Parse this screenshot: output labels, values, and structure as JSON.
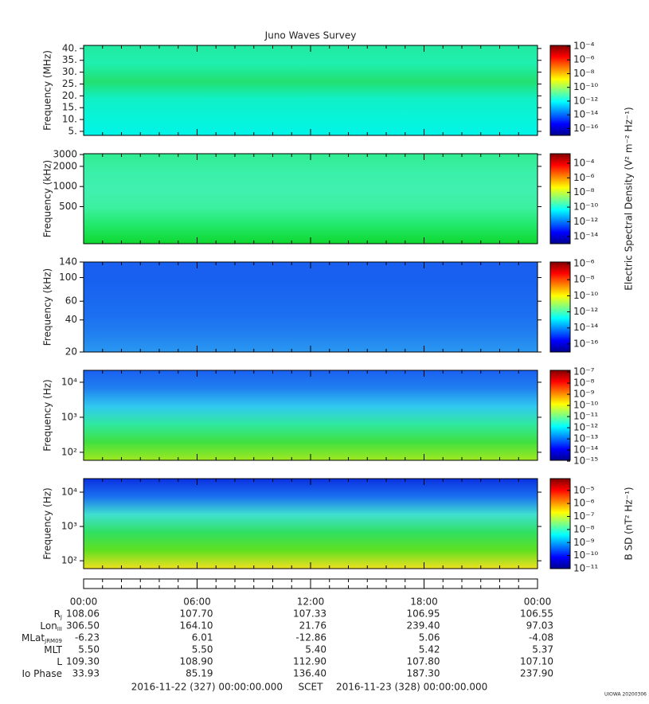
{
  "title": "Juno Waves Survey",
  "xlim": [
    0,
    24
  ],
  "xticks": [
    {
      "value": 0,
      "label": "00:00"
    },
    {
      "value": 6,
      "label": "06:00"
    },
    {
      "value": 12,
      "label": "12:00"
    },
    {
      "value": 18,
      "label": "18:00"
    },
    {
      "value": 24,
      "label": "00:00"
    }
  ],
  "panels": [
    {
      "ylabel": "Frequency (MHz)",
      "yscale": "linear",
      "ylim": [
        3.3,
        41.3
      ],
      "yticks": [
        {
          "value": 40,
          "label": "40."
        },
        {
          "value": 35,
          "label": "35."
        },
        {
          "value": 30,
          "label": "30."
        },
        {
          "value": 25,
          "label": "25."
        },
        {
          "value": 20,
          "label": "20."
        },
        {
          "value": 15,
          "label": "15."
        },
        {
          "value": 10,
          "label": "10."
        },
        {
          "value": 5,
          "label": "5."
        }
      ],
      "clim": [
        1e-17,
        0.00013
      ],
      "cticks": [
        {
          "value": 0.0001,
          "label": "10⁻⁴"
        },
        {
          "value": 1e-06,
          "label": "10⁻⁶"
        },
        {
          "value": 1e-08,
          "label": "10⁻⁸"
        },
        {
          "value": 1e-10,
          "label": "10⁻¹⁰"
        },
        {
          "value": 1e-12,
          "label": "10⁻¹²"
        },
        {
          "value": 1e-14,
          "label": "10⁻¹⁴"
        },
        {
          "value": 1e-16,
          "label": "10⁻¹⁶"
        }
      ],
      "colors": [
        "#22e9a0",
        "#1ff0b0",
        "#22e070",
        "#10f0c8",
        "#08f4d8",
        "#00f4e8"
      ]
    },
    {
      "ylabel": "Frequency (kHz)",
      "yscale": "log",
      "ylim": [
        140,
        3090
      ],
      "yticks": [
        3000,
        2000,
        1000,
        500
      ],
      "clim": [
        1e-15,
        0.002
      ],
      "cticks": [
        {
          "value": 0.0001,
          "label": "10⁻⁴"
        },
        {
          "value": 1e-06,
          "label": "10⁻⁶"
        },
        {
          "value": 1e-08,
          "label": "10⁻⁸"
        },
        {
          "value": 1e-10,
          "label": "10⁻¹⁰"
        },
        {
          "value": 1e-12,
          "label": "10⁻¹²"
        },
        {
          "value": 1e-14,
          "label": "10⁻¹⁴"
        }
      ],
      "colorbar_label": "Electric Spectral Density (V² m⁻² Hz⁻¹)",
      "colors": [
        "#30ec90",
        "#3af0a8",
        "#40f0b0",
        "#3cf0a0",
        "#20e868",
        "#10d830"
      ]
    },
    {
      "ylabel": "Frequency (kHz)",
      "yscale": "log",
      "ylim": [
        20,
        140
      ],
      "yticks": [
        140,
        100,
        60,
        40,
        20
      ],
      "clim": [
        1e-17,
        1.6e-06
      ],
      "cticks": [
        {
          "value": 1e-06,
          "label": "10⁻⁶"
        },
        {
          "value": 1e-08,
          "label": "10⁻⁸"
        },
        {
          "value": 1e-10,
          "label": "10⁻¹⁰"
        },
        {
          "value": 1e-12,
          "label": "10⁻¹²"
        },
        {
          "value": 1e-14,
          "label": "10⁻¹⁴"
        },
        {
          "value": 1e-16,
          "label": "10⁻¹⁶"
        }
      ],
      "colors": [
        "#1a60f0",
        "#1860f0",
        "#1a68f0",
        "#1c70f0",
        "#2080f0",
        "#2a98f0"
      ]
    },
    {
      "ylabel": "Frequency (Hz)",
      "yscale": "log",
      "ylim": [
        59,
        21900
      ],
      "yticks": [
        {
          "value": 10000,
          "label": "10⁴"
        },
        {
          "value": 1000,
          "label": "10³"
        },
        {
          "value": 100,
          "label": "10²"
        }
      ],
      "clim": [
        1.2e-15,
        1.4e-07
      ],
      "cticks": [
        {
          "value": 1e-07,
          "label": "10⁻⁷"
        },
        {
          "value": 1e-08,
          "label": "10⁻⁸"
        },
        {
          "value": 1e-09,
          "label": "10⁻⁹"
        },
        {
          "value": 1e-10,
          "label": "10⁻¹⁰"
        },
        {
          "value": 1e-11,
          "label": "10⁻¹¹"
        },
        {
          "value": 1e-12,
          "label": "10⁻¹²"
        },
        {
          "value": 1e-13,
          "label": "10⁻¹³"
        },
        {
          "value": 1e-14,
          "label": "10⁻¹⁴"
        },
        {
          "value": 1e-15,
          "label": "10⁻¹⁵"
        }
      ],
      "colors": [
        "#1a60f0",
        "#2080f0",
        "#30c8f0",
        "#30e8a0",
        "#40e040",
        "#a0e820"
      ]
    },
    {
      "ylabel": "Frequency (Hz)",
      "yscale": "log",
      "ylim": [
        59,
        24800
      ],
      "yticks": [
        {
          "value": 10000,
          "label": "10⁴"
        },
        {
          "value": 1000,
          "label": "10³"
        },
        {
          "value": 100,
          "label": "10²"
        }
      ],
      "clim": [
        1e-11,
        8e-05
      ],
      "cticks": [
        {
          "value": 1e-05,
          "label": "10⁻⁵"
        },
        {
          "value": 1e-06,
          "label": "10⁻⁶"
        },
        {
          "value": 1e-07,
          "label": "10⁻⁷"
        },
        {
          "value": 1e-08,
          "label": "10⁻⁸"
        },
        {
          "value": 1e-09,
          "label": "10⁻⁹"
        },
        {
          "value": 1e-10,
          "label": "10⁻¹⁰"
        },
        {
          "value": 1e-11,
          "label": "10⁻¹¹"
        }
      ],
      "colorbar_label": "B SD (nT² Hz⁻¹)",
      "colors": [
        "#0a30e0",
        "#1a70f0",
        "#40e0d0",
        "#30e060",
        "#60e020",
        "#f0e020"
      ]
    }
  ],
  "ephemeris": [
    {
      "label": {
        "text": "R",
        "sub": "J"
      },
      "values": [
        "108.06",
        "107.70",
        "107.33",
        "106.95",
        "106.55"
      ]
    },
    {
      "label": {
        "text": "Lon",
        "sub": "III"
      },
      "values": [
        "306.50",
        "164.10",
        "21.76",
        "239.40",
        "97.03"
      ]
    },
    {
      "label": {
        "text": "MLat",
        "sub": "JRM09"
      },
      "values": [
        "-6.23",
        "6.01",
        "-12.86",
        "5.06",
        "-4.08"
      ]
    },
    {
      "label": {
        "text": "MLT"
      },
      "values": [
        "5.50",
        "5.50",
        "5.40",
        "5.42",
        "5.37"
      ]
    },
    {
      "label": {
        "text": "L"
      },
      "values": [
        "109.30",
        "108.90",
        "112.90",
        "107.80",
        "107.10"
      ]
    },
    {
      "label": {
        "text": "Io Phase"
      },
      "values": [
        "33.93",
        "85.19",
        "136.40",
        "187.30",
        "237.90"
      ]
    }
  ],
  "footer": {
    "start": "2016-11-22 (327) 00:00:00.000",
    "scet": "SCET",
    "end": "2016-11-23 (328) 00:00:00.000"
  },
  "credit": "UIOWA 20200306"
}
